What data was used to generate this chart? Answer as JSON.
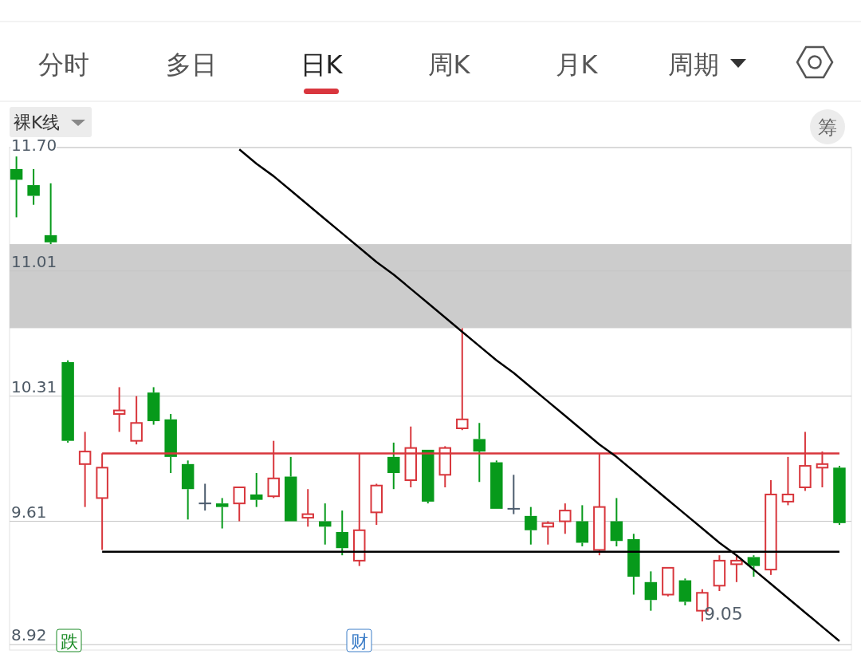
{
  "chart_data": {
    "type": "candlestick",
    "categories": [
      null,
      null,
      null,
      null,
      null,
      null,
      null,
      null,
      null,
      null,
      null,
      null,
      null,
      null,
      null,
      null,
      null,
      null,
      null,
      null,
      null,
      null,
      null,
      null,
      null,
      null,
      null,
      null,
      null,
      null,
      null,
      null,
      null,
      null,
      null,
      null,
      null,
      null,
      null,
      null,
      null,
      null,
      null,
      null,
      null,
      null,
      null,
      null,
      null
    ],
    "ohlc": [
      [
        11.58,
        11.65,
        11.31,
        11.52
      ],
      [
        11.49,
        11.58,
        11.38,
        11.43
      ],
      [
        11.21,
        11.5,
        11.16,
        11.17
      ],
      [
        10.5,
        10.51,
        10.05,
        10.06
      ],
      [
        9.93,
        10.11,
        9.69,
        10.0
      ],
      [
        9.74,
        9.99,
        9.45,
        9.91
      ],
      [
        10.21,
        10.36,
        10.11,
        10.23
      ],
      [
        10.06,
        10.31,
        10.04,
        10.16
      ],
      [
        10.33,
        10.36,
        10.15,
        10.17
      ],
      [
        10.18,
        10.21,
        9.88,
        9.97
      ],
      [
        9.93,
        9.95,
        9.62,
        9.79
      ],
      [
        9.71,
        9.82,
        9.67,
        9.71
      ],
      [
        9.71,
        9.74,
        9.57,
        9.69
      ],
      [
        9.71,
        9.8,
        9.61,
        9.8
      ],
      [
        9.76,
        9.88,
        9.69,
        9.73
      ],
      [
        9.75,
        10.06,
        9.74,
        9.85
      ],
      [
        9.86,
        9.97,
        9.61,
        9.61
      ],
      [
        9.63,
        9.79,
        9.58,
        9.65
      ],
      [
        9.61,
        9.71,
        9.48,
        9.58
      ],
      [
        9.55,
        9.67,
        9.42,
        9.46
      ],
      [
        9.39,
        9.99,
        9.36,
        9.56
      ],
      [
        9.66,
        9.82,
        9.59,
        9.81
      ],
      [
        9.97,
        10.05,
        9.79,
        9.88
      ],
      [
        9.84,
        10.14,
        9.8,
        10.02
      ],
      [
        10.01,
        10.01,
        9.71,
        9.72
      ],
      [
        9.87,
        10.03,
        9.8,
        10.02
      ],
      [
        10.13,
        10.69,
        10.12,
        10.18
      ],
      [
        10.07,
        10.16,
        9.83,
        10.0
      ],
      [
        9.94,
        9.95,
        9.68,
        9.68
      ],
      [
        9.68,
        9.87,
        9.65,
        9.68
      ],
      [
        9.64,
        9.69,
        9.48,
        9.56
      ],
      [
        9.58,
        9.61,
        9.48,
        9.6
      ],
      [
        9.61,
        9.71,
        9.54,
        9.67
      ],
      [
        9.61,
        9.7,
        9.47,
        9.49
      ],
      [
        9.45,
        9.99,
        9.42,
        9.69
      ],
      [
        9.61,
        9.74,
        9.47,
        9.5
      ],
      [
        9.51,
        9.54,
        9.2,
        9.3
      ],
      [
        9.27,
        9.33,
        9.11,
        9.17
      ],
      [
        9.2,
        9.35,
        9.19,
        9.35
      ],
      [
        9.28,
        9.29,
        9.14,
        9.16
      ],
      [
        9.11,
        9.23,
        9.05,
        9.21
      ],
      [
        9.25,
        9.42,
        9.22,
        9.39
      ],
      [
        9.37,
        9.42,
        9.27,
        9.39
      ],
      [
        9.41,
        9.42,
        9.3,
        9.36
      ],
      [
        9.34,
        9.84,
        9.31,
        9.76
      ],
      [
        9.72,
        9.97,
        9.7,
        9.76
      ],
      [
        9.8,
        10.11,
        9.78,
        9.92
      ],
      [
        9.91,
        10.0,
        9.8,
        9.93
      ],
      [
        9.91,
        9.92,
        9.59,
        9.6
      ]
    ],
    "colors": [
      "#079a1b",
      "#079a1b",
      "#079a1b",
      "#079a1b",
      "#d8363c",
      "#d8363c",
      "#d8363c",
      "#d8363c",
      "#079a1b",
      "#079a1b",
      "#079a1b",
      "#4c5c6e",
      "#079a1b",
      "#d8363c",
      "#079a1b",
      "#d8363c",
      "#079a1b",
      "#d8363c",
      "#079a1b",
      "#079a1b",
      "#d8363c",
      "#d8363c",
      "#079a1b",
      "#d8363c",
      "#079a1b",
      "#d8363c",
      "#d8363c",
      "#079a1b",
      "#079a1b",
      "#4c5c6e",
      "#079a1b",
      "#d8363c",
      "#d8363c",
      "#079a1b",
      "#d8363c",
      "#079a1b",
      "#079a1b",
      "#079a1b",
      "#d8363c",
      "#079a1b",
      "#d8363c",
      "#d8363c",
      "#d8363c",
      "#079a1b",
      "#d8363c",
      "#d8363c",
      "#d8363c",
      "#d8363c",
      "#079a1b"
    ],
    "series": [
      {
        "type": "line",
        "color": "#d8363c",
        "values": [
          null,
          null,
          null,
          null,
          null,
          9.99,
          9.99,
          9.99,
          9.99,
          9.99,
          9.99,
          9.99,
          9.99,
          9.99,
          9.99,
          9.99,
          9.99,
          9.99,
          9.99,
          9.99,
          9.99,
          9.99,
          9.99,
          9.99,
          9.99,
          9.99,
          9.99,
          9.99,
          9.99,
          9.99,
          9.99,
          9.99,
          9.99,
          9.99,
          9.99,
          9.99,
          9.99,
          9.99,
          9.99,
          9.99,
          9.99,
          9.99,
          9.99,
          9.99,
          9.99,
          9.99,
          9.99,
          9.99,
          9.99
        ]
      },
      {
        "type": "line",
        "color": "#000000",
        "values": [
          null,
          null,
          null,
          null,
          null,
          9.44,
          9.44,
          9.44,
          9.44,
          9.44,
          9.44,
          9.44,
          9.44,
          9.44,
          9.44,
          9.44,
          9.44,
          9.44,
          9.44,
          9.44,
          9.44,
          9.44,
          9.44,
          9.44,
          9.44,
          9.44,
          9.44,
          9.44,
          9.44,
          9.44,
          9.44,
          9.44,
          9.44,
          9.44,
          9.44,
          9.44,
          9.44,
          9.44,
          9.44,
          9.44,
          9.44,
          9.44,
          9.44,
          9.44,
          9.44,
          9.44,
          9.44,
          9.44,
          9.44
        ]
      },
      {
        "type": "line",
        "color": "#000000",
        "values": [
          null,
          null,
          null,
          null,
          null,
          null,
          null,
          null,
          null,
          null,
          null,
          null,
          null,
          11.69,
          11.61,
          11.54,
          11.46,
          11.38,
          11.3,
          11.22,
          11.14,
          11.06,
          10.99,
          10.91,
          10.83,
          10.75,
          10.67,
          10.59,
          10.51,
          10.44,
          10.36,
          10.28,
          10.2,
          10.12,
          10.04,
          9.97,
          9.89,
          9.81,
          9.73,
          9.65,
          9.57,
          9.49,
          9.42,
          9.34,
          9.26,
          9.18,
          9.1,
          9.02,
          8.94
        ]
      }
    ],
    "bands": [
      {
        "axis": "y",
        "from": 10.69,
        "to": 11.16,
        "color": "#cccccc"
      }
    ],
    "ylim": [
      8.89,
      11.7
    ],
    "yticks": [
      {
        "value": 11.7,
        "label": "11.70"
      },
      11.01,
      10.31,
      9.61,
      8.92
    ],
    "grid": "y",
    "annotations": [
      "分时",
      "多日",
      "日K",
      "周K",
      "月K",
      "周期",
      "裸K线",
      "筹",
      "跌",
      "财",
      "9.05"
    ]
  }
}
